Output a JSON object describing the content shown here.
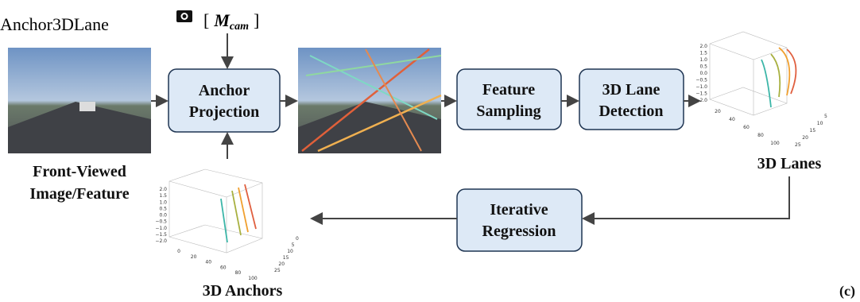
{
  "header": {
    "title": "Anchor3DLane"
  },
  "camera_label": {
    "open": "[",
    "symbol": "M",
    "subscript": "cam",
    "close": "]"
  },
  "nodes": [
    {
      "label": [
        "Anchor",
        "Projection"
      ]
    },
    {
      "label": [
        "Feature",
        "Sampling"
      ]
    },
    {
      "label": [
        "3D Lane",
        "Detection"
      ]
    },
    {
      "label": [
        "Iterative",
        "Regression"
      ]
    }
  ],
  "captions": {
    "input": [
      "Front-Viewed",
      "Image/Feature"
    ],
    "lanes": "3D Lanes",
    "anchors": "3D Anchors",
    "panel": "(c)"
  },
  "plots": [
    {
      "z": [
        "2.0",
        "1.5",
        "1.0",
        "0.5",
        "0.0",
        "−0.5",
        "−1.0",
        "−1.5",
        "−2.0"
      ],
      "x": [
        "20",
        "40",
        "60",
        "80",
        "100"
      ],
      "y": [
        "5",
        "10",
        "15",
        "20",
        "25"
      ]
    },
    {
      "z": [
        "2.0",
        "1.5",
        "1.0",
        "0.5",
        "0.0",
        "−0.5",
        "−1.0",
        "−1.5",
        "−2.0"
      ],
      "x": [
        "0",
        "20",
        "40",
        "60",
        "80",
        "100"
      ],
      "y": [
        "0",
        "5",
        "10",
        "15",
        "20",
        "25"
      ]
    }
  ]
}
